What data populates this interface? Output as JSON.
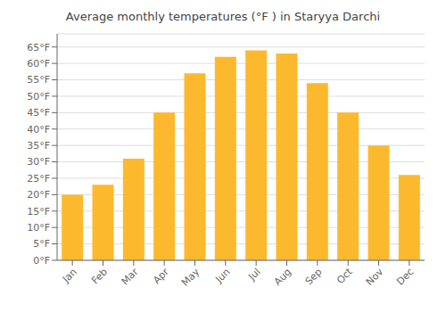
{
  "chart_data": {
    "type": "bar",
    "title": "Average monthly temperatures (°F ) in Staryya Darchi",
    "categories": [
      "Jan",
      "Feb",
      "Mar",
      "Apr",
      "May",
      "Jun",
      "Jul",
      "Aug",
      "Sep",
      "Oct",
      "Nov",
      "Dec"
    ],
    "values": [
      20,
      23,
      31,
      45,
      57,
      62,
      64,
      63,
      54,
      45,
      35,
      26
    ],
    "color": "#FDB92E",
    "ylim": [
      0,
      69
    ],
    "yticks": [
      {
        "value": 0,
        "label": "0°F"
      },
      {
        "value": 5,
        "label": "5°F"
      },
      {
        "value": 10,
        "label": "10°F"
      },
      {
        "value": 15,
        "label": "15°F"
      },
      {
        "value": 20,
        "label": "20°F"
      },
      {
        "value": 25,
        "label": "25°F"
      },
      {
        "value": 30,
        "label": "30°F"
      },
      {
        "value": 35,
        "label": "35°F"
      },
      {
        "value": 40,
        "label": "40°F"
      },
      {
        "value": 45,
        "label": "45°F"
      },
      {
        "value": 50,
        "label": "50°F"
      },
      {
        "value": 55,
        "label": "55°F"
      },
      {
        "value": 60,
        "label": "60°F"
      },
      {
        "value": 65,
        "label": "65°F"
      }
    ],
    "grid": true
  }
}
